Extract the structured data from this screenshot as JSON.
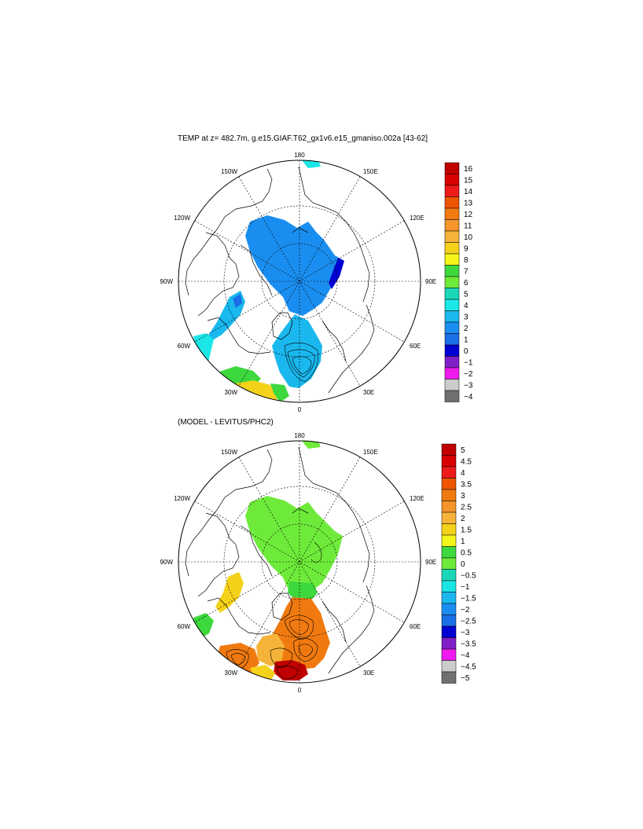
{
  "titles": {
    "top": "TEMP at z= 482.7m, g.e15.GIAF.T62_gx1v6.e15_gmaniso.002a [43-62]",
    "bottom": "(MODEL - LEVITUS/PHC2)"
  },
  "longitude_labels": {
    "lon_180": "180",
    "lon_150e": "150E",
    "lon_120e": "120E",
    "lon_90e": "90E",
    "lon_60e": "60E",
    "lon_30e": "30E",
    "lon_0": "0",
    "lon_30w": "30W",
    "lon_60w": "60W",
    "lon_90w": "90W",
    "lon_120w": "120W",
    "lon_150w": "150W"
  },
  "colorbar_top": {
    "labels": [
      "16",
      "15",
      "14",
      "13",
      "12",
      "11",
      "10",
      "9",
      "8",
      "7",
      "6",
      "5",
      "4",
      "3",
      "2",
      "1",
      "0",
      "−1",
      "−2",
      "−3",
      "−4"
    ],
    "colors": [
      "#c00000",
      "#d80000",
      "#ee1a1a",
      "#ee5500",
      "#f07a10",
      "#f5952a",
      "#f5b33a",
      "#f5d21a",
      "#f5f51a",
      "#3dd83d",
      "#6eea3a",
      "#1ad7b8",
      "#1ae6e6",
      "#1ab8ee",
      "#1a8ef0",
      "#1a6ee6",
      "#0000d2",
      "#8020c8",
      "#ee1aee",
      "#cccccc",
      "#707070"
    ]
  },
  "colorbar_bottom": {
    "labels": [
      "5",
      "4.5",
      "4",
      "3.5",
      "3",
      "2.5",
      "2",
      "1.5",
      "1",
      "0.5",
      "0",
      "−0.5",
      "−1",
      "−1.5",
      "−2",
      "−2.5",
      "−3",
      "−3.5",
      "−4",
      "−4.5",
      "−5"
    ],
    "colors": [
      "#c00000",
      "#d80000",
      "#ee1a1a",
      "#ee5500",
      "#f07a10",
      "#f5952a",
      "#f5b33a",
      "#f5d21a",
      "#f5f51a",
      "#3dd83d",
      "#6eea3a",
      "#1ad7b8",
      "#1ae6e6",
      "#1ab8ee",
      "#1a8ef0",
      "#1a6ee6",
      "#0000d2",
      "#8020c8",
      "#ee1aee",
      "#cccccc",
      "#707070"
    ]
  }
}
